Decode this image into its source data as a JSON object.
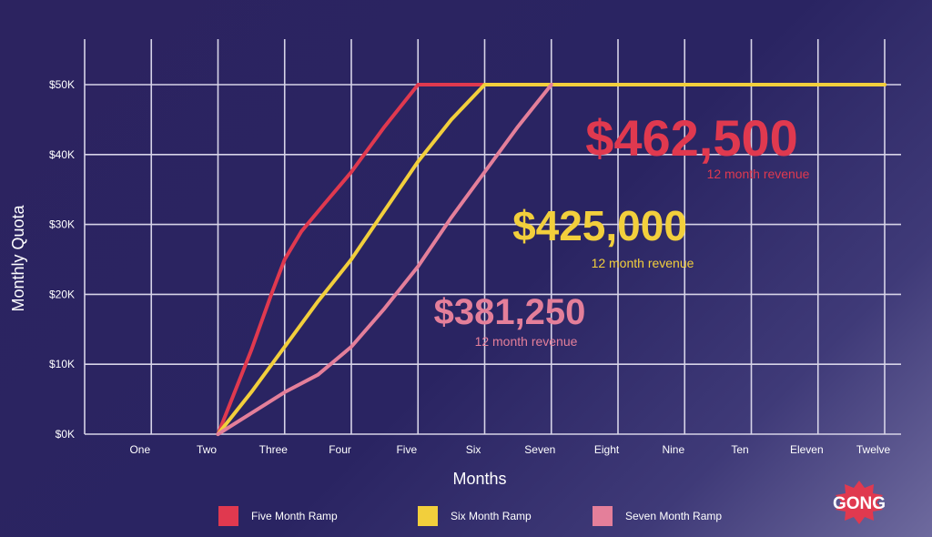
{
  "chart_data": {
    "type": "line",
    "title": "",
    "xlabel": "Months",
    "ylabel": "Monthly Quota",
    "categories": [
      "One",
      "Two",
      "Three",
      "Four",
      "Five",
      "Six",
      "Seven",
      "Eight",
      "Nine",
      "Ten",
      "Eleven",
      "Twelve"
    ],
    "y_ticks": [
      "$0K",
      "$10K",
      "$20K",
      "$30K",
      "$40K",
      "$50K"
    ],
    "ylim": [
      0,
      50000
    ],
    "grid": true,
    "legend_position": "bottom",
    "series": [
      {
        "name": "Five Month Ramp",
        "color": "#e0394f",
        "points": [
          [
            2,
            0
          ],
          [
            2.5,
            12000
          ],
          [
            2.8,
            20000
          ],
          [
            3,
            25000
          ],
          [
            3.25,
            29000
          ],
          [
            3.6,
            33000
          ],
          [
            4,
            37500
          ],
          [
            4.5,
            44000
          ],
          [
            5,
            50000
          ],
          [
            12,
            50000
          ]
        ]
      },
      {
        "name": "Six Month Ramp",
        "color": "#f2cf3c",
        "points": [
          [
            2,
            0
          ],
          [
            2.5,
            6000
          ],
          [
            3,
            12500
          ],
          [
            3.5,
            19000
          ],
          [
            4,
            25000
          ],
          [
            4.5,
            32000
          ],
          [
            5,
            39000
          ],
          [
            5.5,
            45000
          ],
          [
            6,
            50000
          ],
          [
            12,
            50000
          ]
        ]
      },
      {
        "name": "Seven Month Ramp",
        "color": "#e47f9a",
        "points": [
          [
            2,
            0
          ],
          [
            3,
            6000
          ],
          [
            3.5,
            8500
          ],
          [
            4,
            12500
          ],
          [
            4.5,
            18000
          ],
          [
            5,
            24000
          ],
          [
            5.5,
            31000
          ],
          [
            6,
            37500
          ],
          [
            6.5,
            44000
          ],
          [
            7,
            50000
          ]
        ]
      }
    ],
    "annotations": [
      {
        "value": "$462,500",
        "label": "12 month revenue",
        "color": "#e0394f"
      },
      {
        "value": "$425,000",
        "label": "12 month revenue",
        "color": "#f2cf3c"
      },
      {
        "value": "$381,250",
        "label": "12 month revenue",
        "color": "#e47f9a"
      }
    ]
  },
  "logo": {
    "text": "GONG",
    "color": "#e0394f"
  }
}
